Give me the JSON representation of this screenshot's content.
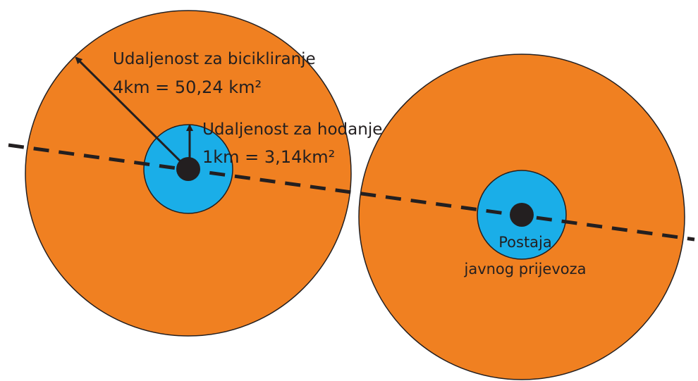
{
  "diagram": {
    "colors": {
      "cycling_zone": "#f08021",
      "walking_zone": "#1aaee8",
      "outline": "#231f20",
      "transit_line": "#231f20",
      "station": "#231f20",
      "background": "#ffffff"
    },
    "labels": {
      "cycling_title": "Udaljenost za bicikliranje",
      "cycling_area": "4km = 50,24 km²",
      "walking_title": "Udaljenost za hodanje",
      "walking_area": "1km = 3,14km²",
      "station_line1": "Postaja",
      "station_line2": "javnog prijevoza"
    }
  }
}
